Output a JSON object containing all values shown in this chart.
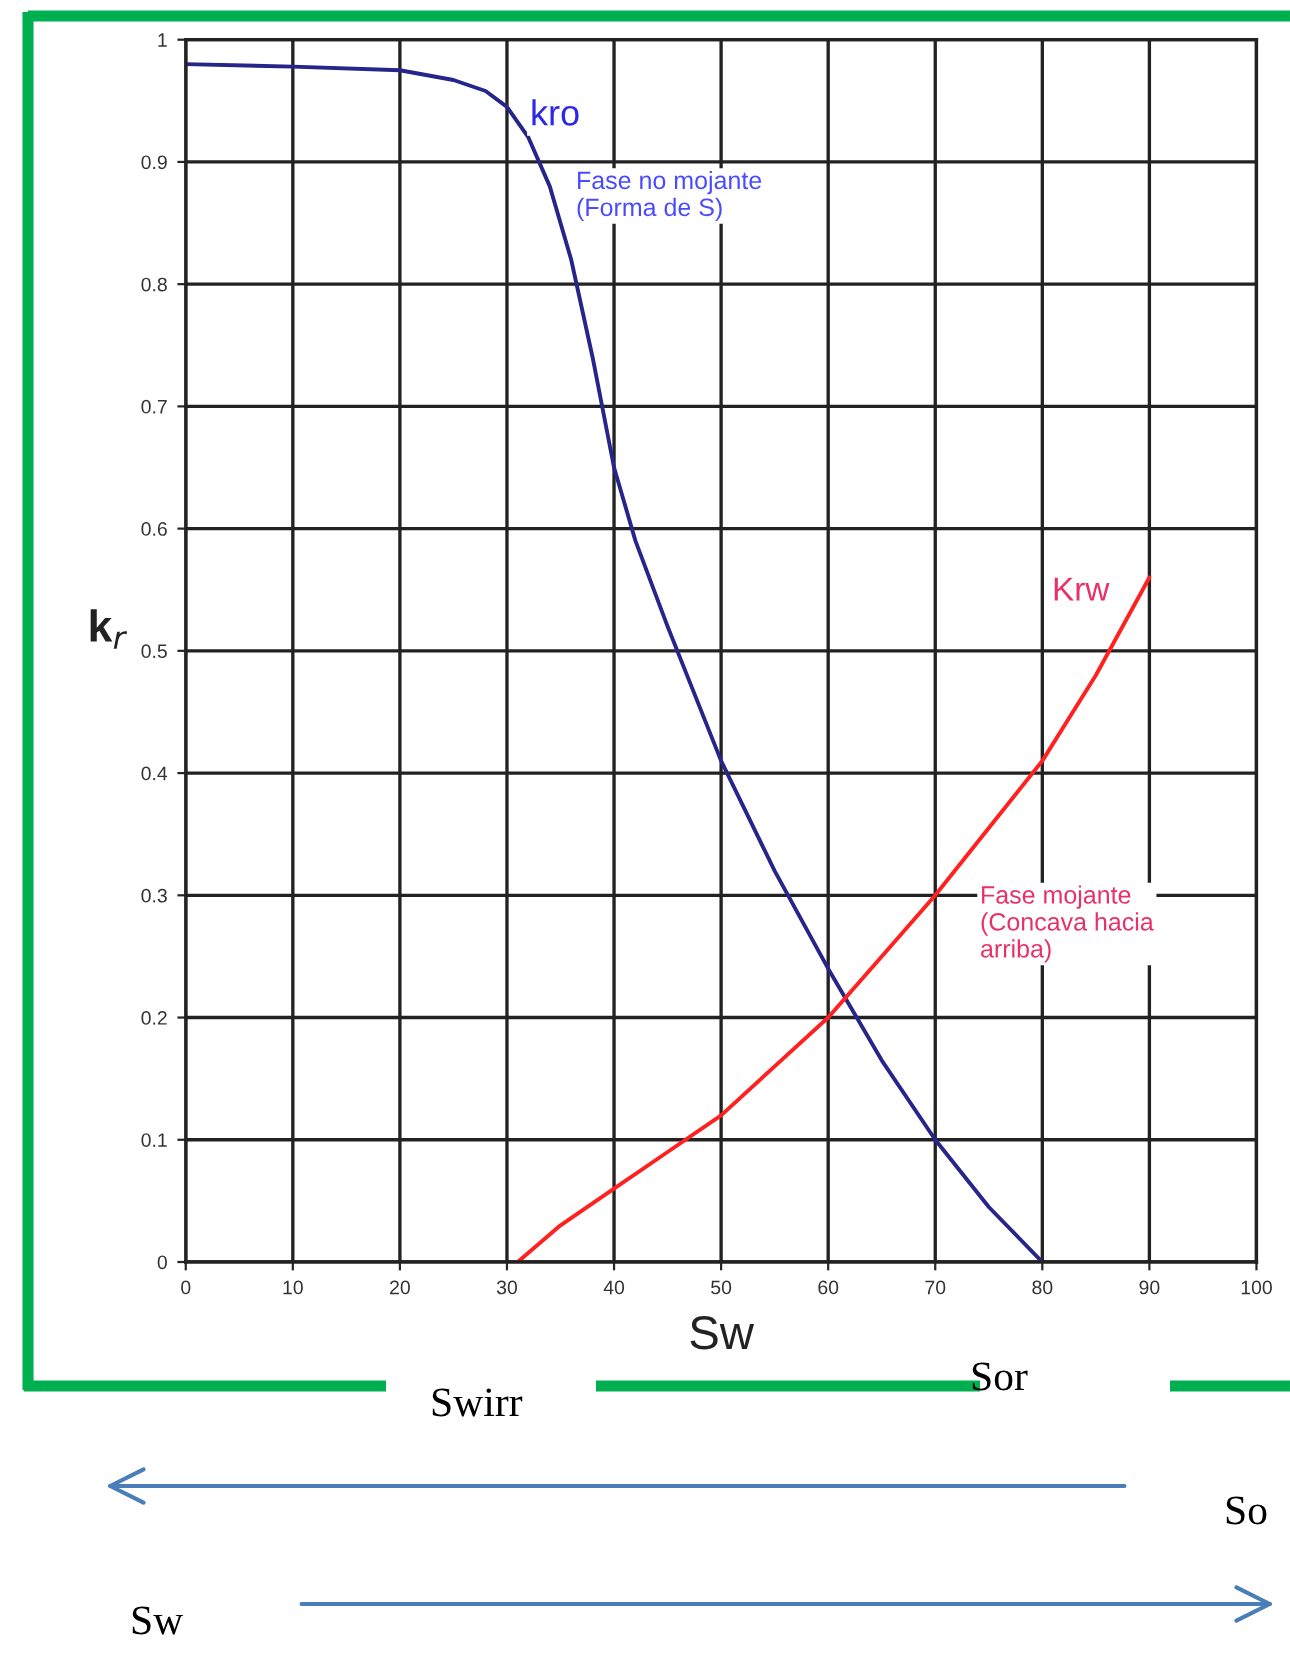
{
  "chart_data": {
    "type": "line",
    "xlabel": "Sw",
    "ylabel": "k$_{r}$",
    "xlim": [
      0,
      100
    ],
    "ylim": [
      0,
      1
    ],
    "xticks": [
      0,
      10,
      20,
      30,
      40,
      50,
      60,
      70,
      80,
      90,
      100
    ],
    "yticks": [
      0,
      0.1,
      0.2,
      0.3,
      0.4,
      0.5,
      0.6,
      0.7,
      0.8,
      0.9,
      1
    ],
    "grid": true,
    "marker": "none",
    "line_style": "solid",
    "series": [
      {
        "color": "#25258a",
        "x": [
          0,
          10,
          20,
          25,
          28,
          30,
          32,
          34,
          36,
          38,
          40,
          42,
          45,
          50,
          55,
          60,
          65,
          70,
          75,
          80
        ],
        "values": [
          0.98,
          0.978,
          0.975,
          0.967,
          0.958,
          0.945,
          0.92,
          0.88,
          0.82,
          0.74,
          0.65,
          0.59,
          0.52,
          0.41,
          0.32,
          0.24,
          0.165,
          0.1,
          0.045,
          0
        ]
      },
      {
        "color": "#ff2020",
        "x": [
          31,
          35,
          40,
          45,
          50,
          55,
          60,
          65,
          70,
          75,
          80,
          85,
          90
        ],
        "values": [
          0,
          0.03,
          0.06,
          0.09,
          0.12,
          0.16,
          0.2,
          0.25,
          0.3,
          0.355,
          0.41,
          0.48,
          0.56
        ]
      }
    ],
    "annotations": [
      "kro",
      "Fase no mojante\n(Forma de S)",
      "Krw",
      "Fase mojante\n(Concava hacia\narriba)",
      "Swirr",
      "Sor",
      "So",
      "Sw"
    ]
  }
}
